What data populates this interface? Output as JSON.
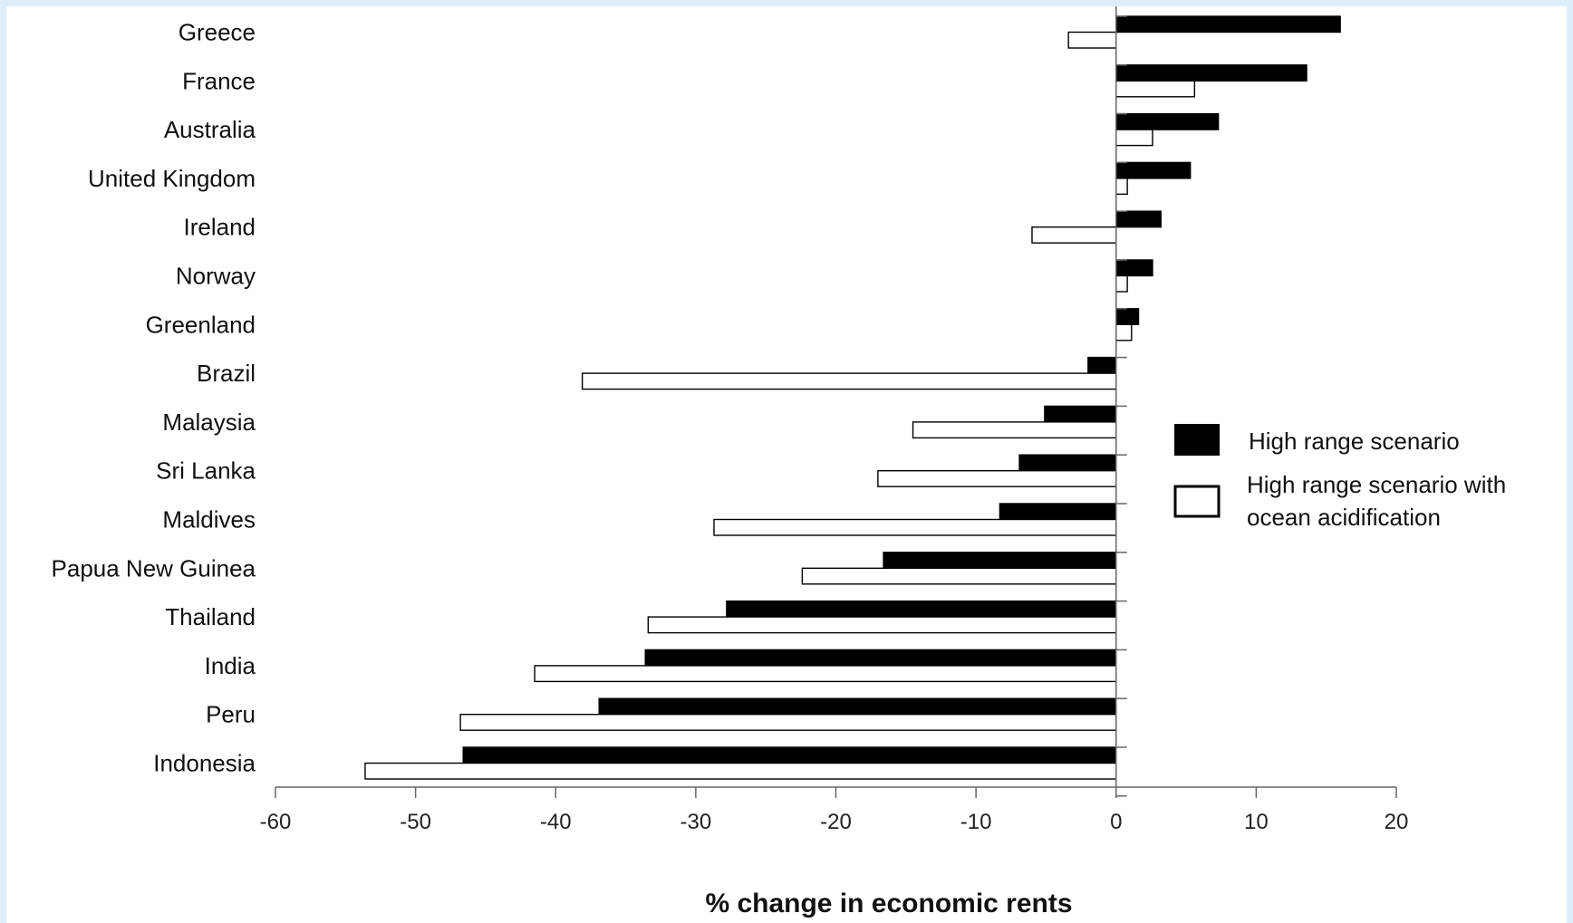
{
  "chart_data": {
    "type": "bar",
    "orientation": "horizontal",
    "categories": [
      "Greece",
      "France",
      "Australia",
      "United Kingdom",
      "Ireland",
      "Norway",
      "Greenland",
      "Brazil",
      "Malaysia",
      "Sri Lanka",
      "Maldives",
      "Papua New Guinea",
      "Thailand",
      "India",
      "Peru",
      "Indonesia"
    ],
    "series": [
      {
        "name": "High range scenario",
        "color": "#000000",
        "values": [
          16.0,
          13.6,
          7.3,
          5.3,
          3.2,
          2.6,
          1.6,
          -2.0,
          -5.1,
          -6.9,
          -8.3,
          -16.6,
          -27.8,
          -33.6,
          -36.9,
          -46.6
        ]
      },
      {
        "name": "High range scenario with ocean acidification",
        "legend_lines": [
          "High range scenario with",
          "ocean acidification"
        ],
        "color": "#ffffff",
        "values": [
          -3.4,
          5.6,
          2.6,
          0.8,
          -6.0,
          0.8,
          1.1,
          -38.1,
          -14.5,
          -17.0,
          -28.7,
          -22.4,
          -33.4,
          -41.5,
          -46.8,
          -53.6
        ]
      }
    ],
    "xlabel": "% change in economic rents",
    "ylabel": "",
    "xlim": [
      -60,
      20
    ],
    "xticks": [
      -60,
      -50,
      -40,
      -30,
      -20,
      -10,
      0,
      10,
      20
    ],
    "grid": false,
    "legend_position": "right"
  }
}
